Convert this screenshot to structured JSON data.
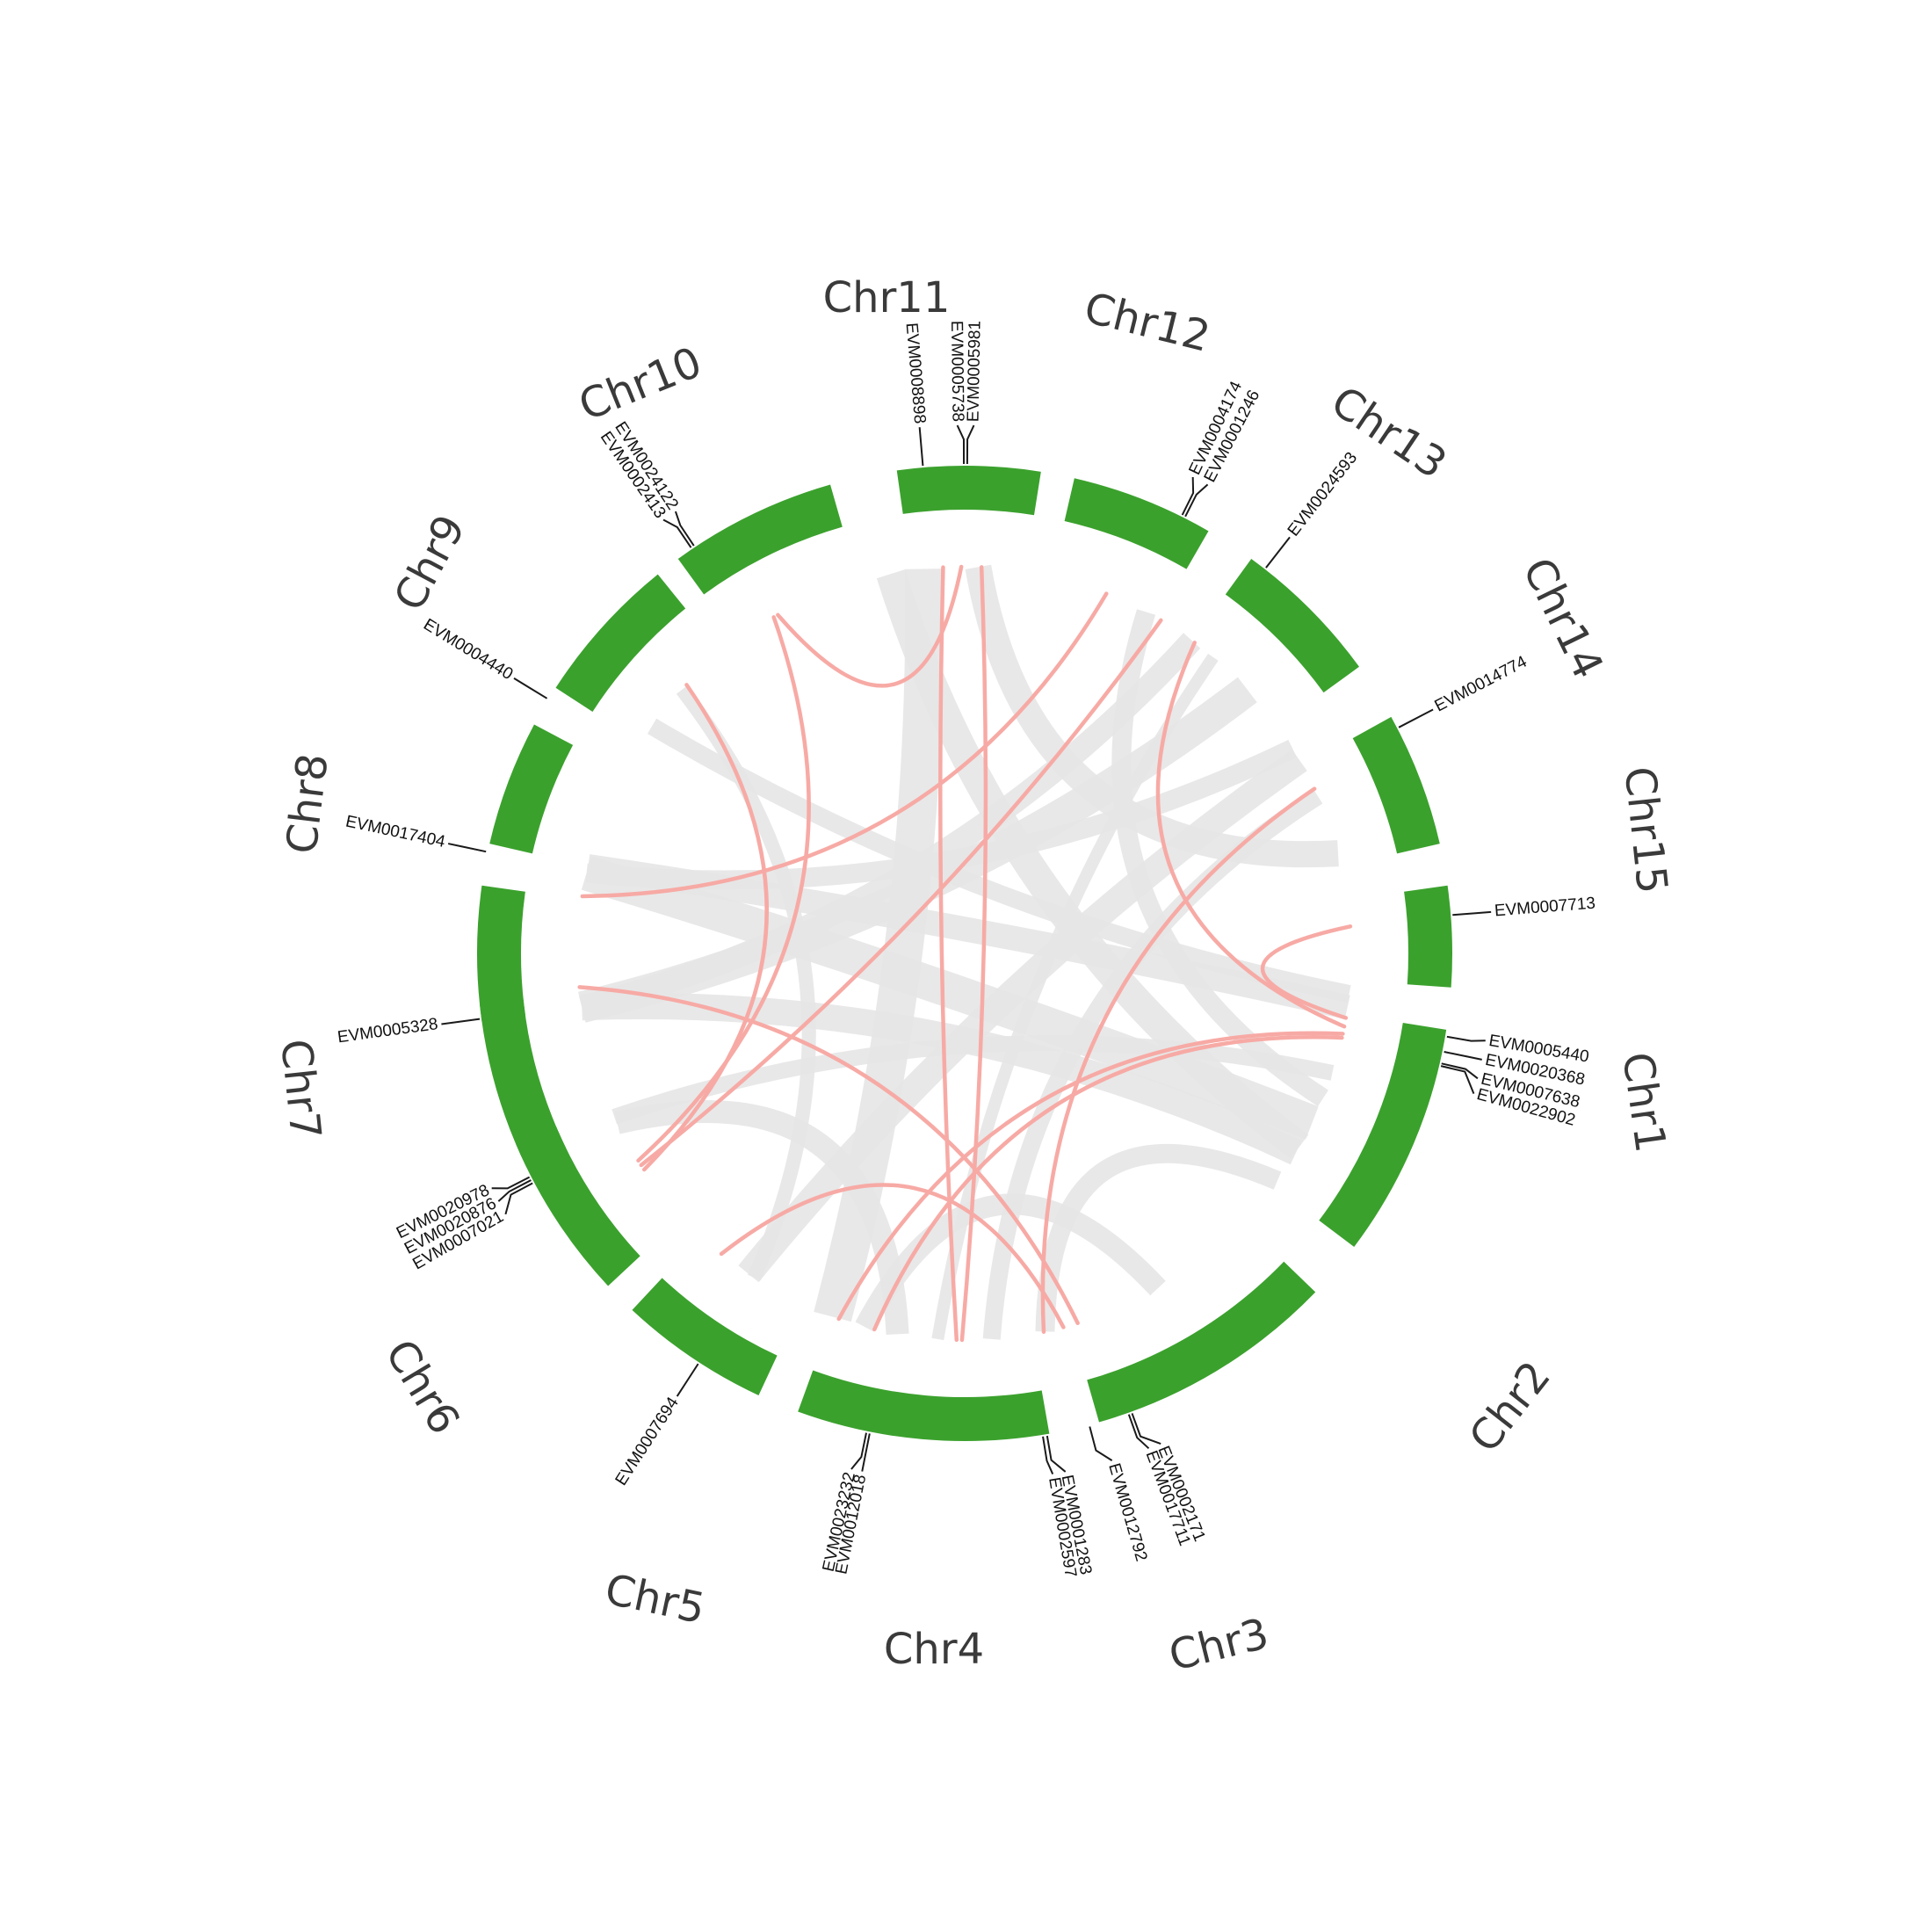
{
  "colors": {
    "chromosome": "#3ba12d",
    "background_link": "#e6e6e6",
    "highlight_link": "#f7aaa5",
    "text": "#3a3a3a"
  },
  "chromosomes": [
    {
      "id": "chr1",
      "label": "Chr1"
    },
    {
      "id": "chr2",
      "label": "Chr2"
    },
    {
      "id": "chr3",
      "label": "Chr3"
    },
    {
      "id": "chr4",
      "label": "Chr4"
    },
    {
      "id": "chr5",
      "label": "Chr5"
    },
    {
      "id": "chr6",
      "label": "Chr6"
    },
    {
      "id": "chr7",
      "label": "Chr7"
    },
    {
      "id": "chr8",
      "label": "Chr8"
    },
    {
      "id": "chr9",
      "label": "Chr9"
    },
    {
      "id": "chr10",
      "label": "Chr10"
    },
    {
      "id": "chr11",
      "label": "Chr11"
    },
    {
      "id": "chr12",
      "label": "Chr12"
    },
    {
      "id": "chr13",
      "label": "Chr13"
    },
    {
      "id": "chr14",
      "label": "Chr14"
    },
    {
      "id": "chr15",
      "label": "Chr15"
    }
  ],
  "genes": [
    {
      "id": "EVM0005440",
      "chr": "chr1"
    },
    {
      "id": "EVM0020368",
      "chr": "chr1"
    },
    {
      "id": "EVM0007638",
      "chr": "chr1"
    },
    {
      "id": "EVM0022902",
      "chr": "chr1"
    },
    {
      "id": "EVM0002171",
      "chr": "chr3"
    },
    {
      "id": "EVM0017711",
      "chr": "chr3"
    },
    {
      "id": "EVM0012792",
      "chr": "chr3"
    },
    {
      "id": "EVM0001283",
      "chr": "chr3"
    },
    {
      "id": "EVM0002597",
      "chr": "chr3"
    },
    {
      "id": "EVM0012018",
      "chr": "chr4"
    },
    {
      "id": "EVM0023232",
      "chr": "chr4"
    },
    {
      "id": "EVM0007694",
      "chr": "chr5"
    },
    {
      "id": "EVM0007021",
      "chr": "chr6"
    },
    {
      "id": "EVM0020876",
      "chr": "chr6"
    },
    {
      "id": "EVM0020978",
      "chr": "chr6"
    },
    {
      "id": "EVM0005328",
      "chr": "chr7"
    },
    {
      "id": "EVM0017404",
      "chr": "chr8"
    },
    {
      "id": "EVM0004440",
      "chr": "chr9"
    },
    {
      "id": "EVM0002413",
      "chr": "chr10"
    },
    {
      "id": "EVM0024122",
      "chr": "chr10"
    },
    {
      "id": "EVM0008898",
      "chr": "chr11"
    },
    {
      "id": "EVM0005738",
      "chr": "chr11"
    },
    {
      "id": "EVM0005981",
      "chr": "chr11"
    },
    {
      "id": "EVM0004174",
      "chr": "chr12"
    },
    {
      "id": "EVM0001246",
      "chr": "chr12"
    },
    {
      "id": "EVM0024593",
      "chr": "chr13"
    },
    {
      "id": "EVM0014774",
      "chr": "chr14"
    },
    {
      "id": "EVM0007713",
      "chr": "chr15"
    }
  ],
  "segmental_duplications": [
    [
      "EVM0005440",
      "EVM0007713"
    ],
    [
      "EVM0020368",
      "EVM0024593"
    ],
    [
      "EVM0007638",
      "EVM0002597"
    ],
    [
      "EVM0022902",
      "EVM0001283"
    ],
    [
      "EVM0002171",
      "EVM0014774"
    ],
    [
      "EVM0017711",
      "EVM0007694"
    ],
    [
      "EVM0012792",
      "EVM0005328"
    ],
    [
      "EVM0012018",
      "EVM0008898"
    ],
    [
      "EVM0023232",
      "EVM0005981"
    ],
    [
      "EVM0007021",
      "EVM0004440"
    ],
    [
      "EVM0020876",
      "EVM0001246"
    ],
    [
      "EVM0020978",
      "EVM0002413"
    ],
    [
      "EVM0017404",
      "EVM0004174"
    ],
    [
      "EVM0024122",
      "EVM0005738"
    ]
  ]
}
